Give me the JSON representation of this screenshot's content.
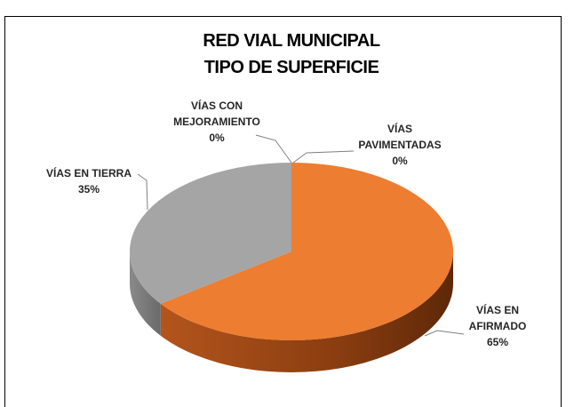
{
  "chart_data": {
    "type": "pie3d",
    "title": [
      "RED VIAL MUNICIPAL",
      "TIPO DE SUPERFICIE"
    ],
    "categories": [
      "VÍAS PAVIMENTADAS",
      "VÍAS EN AFIRMADO",
      "VÍAS EN TIERRA",
      "VÍAS CON MEJORAMIENTO"
    ],
    "values": [
      0,
      65,
      35,
      0
    ],
    "value_labels": [
      "0%",
      "65%",
      "35%",
      "0%"
    ],
    "colors": [
      "#4472c4",
      "#ed7d31",
      "#a5a5a5",
      "#ffc000"
    ]
  }
}
